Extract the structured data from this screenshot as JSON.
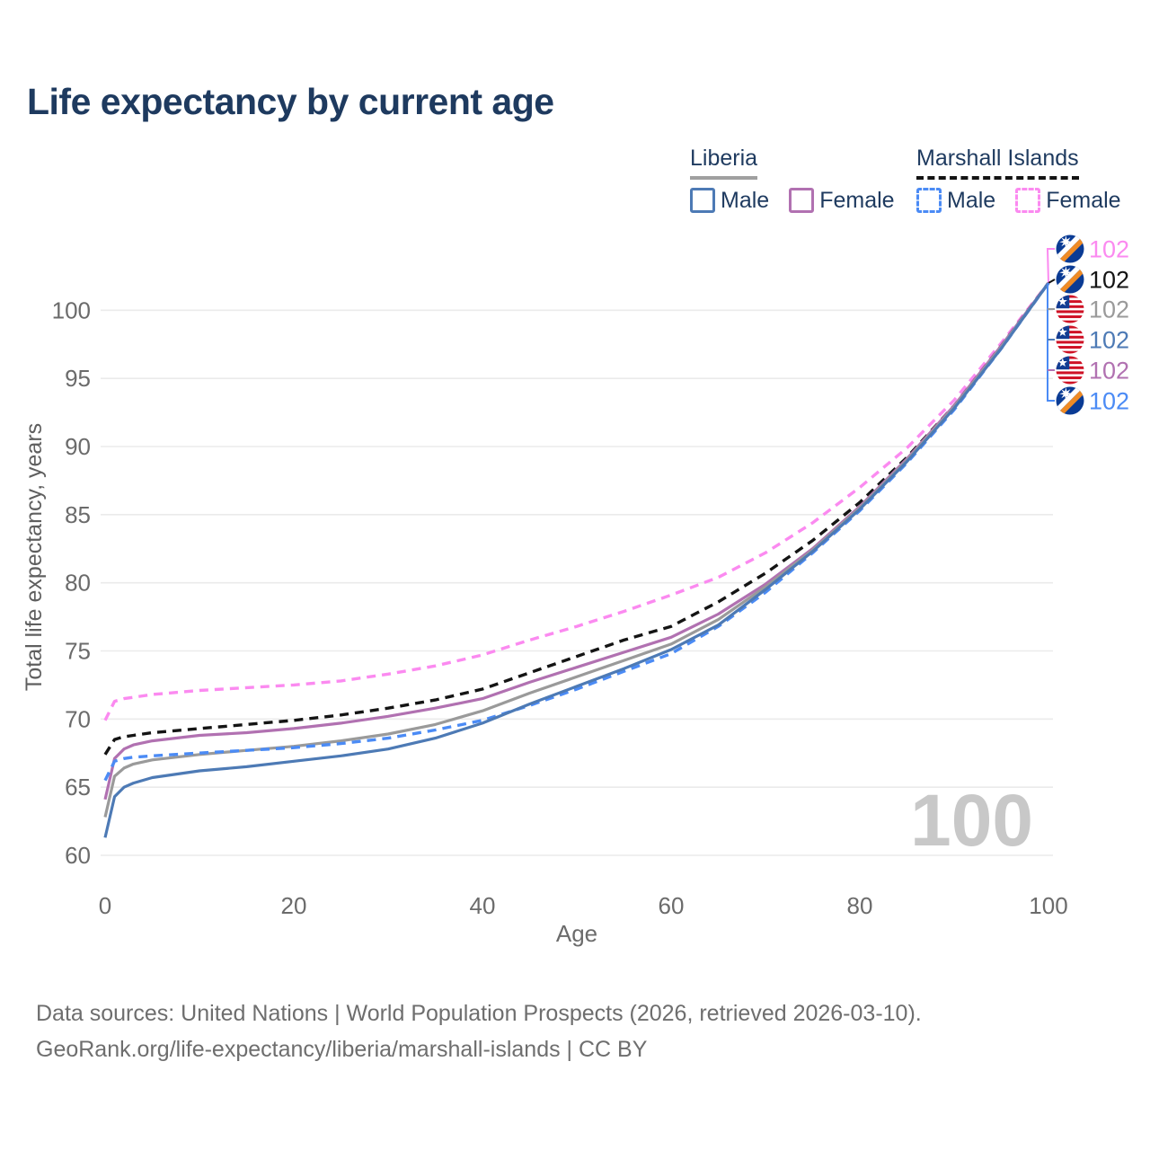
{
  "title": "Life expectancy by current age",
  "watermark": "100",
  "legend": {
    "groups": [
      {
        "label": "Liberia",
        "line_style": "solid",
        "line_color": "#a0a0a0",
        "items": [
          {
            "label": "Male",
            "color": "#4d7ab5"
          },
          {
            "label": "Female",
            "color": "#b171b1"
          }
        ]
      },
      {
        "label": "Marshall Islands",
        "line_style": "dashed",
        "line_color": "#141414",
        "items": [
          {
            "label": "Male",
            "color": "#4b8bf5"
          },
          {
            "label": "Female",
            "color": "#fb8af0"
          }
        ]
      }
    ]
  },
  "footer": {
    "line1": "Data sources: United Nations | World Population Prospects (2026, retrieved 2026-03-10).",
    "line2": "GeoRank.org/life-expectancy/liberia/marshall-islands | CC BY"
  },
  "chart_data": {
    "type": "line",
    "title": "Life expectancy by current age",
    "xlabel": "Age",
    "ylabel": "Total life expectancy, years",
    "xlim": [
      0,
      100
    ],
    "ylim": [
      60,
      102
    ],
    "x_ticks": [
      0,
      20,
      40,
      60,
      80,
      100
    ],
    "y_ticks": [
      60,
      65,
      70,
      75,
      80,
      85,
      90,
      95,
      100
    ],
    "grid": "horizontal-only",
    "legend_position": "top-right",
    "ages": [
      0,
      1,
      2,
      3,
      5,
      10,
      15,
      20,
      25,
      30,
      35,
      40,
      45,
      50,
      55,
      60,
      65,
      70,
      75,
      80,
      85,
      90,
      95,
      100
    ],
    "series": [
      {
        "id": "marshall-islands-female",
        "name": "Marshall Islands Female",
        "country": "Marshall Islands",
        "sex": "Female",
        "color": "#fb8af0",
        "dash": true,
        "values": [
          69.9,
          71.3,
          71.5,
          71.6,
          71.8,
          72.1,
          72.3,
          72.5,
          72.8,
          73.3,
          73.9,
          74.7,
          75.8,
          76.8,
          77.9,
          79.1,
          80.4,
          82.2,
          84.4,
          87.0,
          89.9,
          93.4,
          97.6,
          102
        ]
      },
      {
        "id": "marshall-islands-total",
        "name": "Marshall Islands",
        "country": "Marshall Islands",
        "sex": "Both",
        "color": "#141414",
        "dash": true,
        "values": [
          67.4,
          68.5,
          68.7,
          68.8,
          69.0,
          69.3,
          69.6,
          69.9,
          70.3,
          70.8,
          71.4,
          72.2,
          73.4,
          74.6,
          75.8,
          76.8,
          78.6,
          80.7,
          83.1,
          85.9,
          89.2,
          93.0,
          97.4,
          102
        ]
      },
      {
        "id": "liberia-female",
        "name": "Liberia Female",
        "country": "Liberia",
        "sex": "Female",
        "color": "#b171b1",
        "dash": false,
        "values": [
          64.1,
          67.1,
          67.8,
          68.1,
          68.4,
          68.8,
          69.0,
          69.3,
          69.7,
          70.2,
          70.8,
          71.5,
          72.7,
          73.8,
          74.9,
          76.0,
          77.7,
          79.9,
          82.5,
          85.6,
          89.1,
          93.0,
          97.4,
          102
        ]
      },
      {
        "id": "liberia-total",
        "name": "Liberia",
        "country": "Liberia",
        "sex": "Both",
        "color": "#9a9a9a",
        "dash": false,
        "values": [
          62.8,
          65.8,
          66.4,
          66.7,
          67.0,
          67.4,
          67.7,
          68.0,
          68.4,
          68.9,
          69.6,
          70.6,
          71.9,
          73.1,
          74.3,
          75.5,
          77.3,
          79.7,
          82.4,
          85.5,
          89.0,
          92.9,
          97.3,
          102
        ]
      },
      {
        "id": "marshall-islands-male",
        "name": "Marshall Islands Male",
        "country": "Marshall Islands",
        "sex": "Male",
        "color": "#4b8bf5",
        "dash": true,
        "values": [
          65.5,
          66.9,
          67.1,
          67.2,
          67.3,
          67.5,
          67.7,
          67.9,
          68.2,
          68.6,
          69.2,
          69.9,
          71.0,
          72.2,
          73.5,
          74.8,
          76.8,
          79.3,
          82.2,
          85.3,
          88.8,
          92.7,
          97.2,
          102
        ]
      },
      {
        "id": "liberia-male",
        "name": "Liberia Male",
        "country": "Liberia",
        "sex": "Male",
        "color": "#4d7ab5",
        "dash": false,
        "values": [
          61.3,
          64.3,
          65.0,
          65.3,
          65.7,
          66.2,
          66.5,
          66.9,
          67.3,
          67.8,
          68.6,
          69.7,
          71.1,
          72.4,
          73.7,
          75.1,
          76.9,
          79.5,
          82.3,
          85.4,
          88.9,
          92.8,
          97.2,
          102
        ]
      }
    ],
    "end_labels": [
      {
        "text": "102",
        "flag": "marshall-islands",
        "color": "#fb8af0",
        "series": "Marshall Islands Female"
      },
      {
        "text": "102",
        "flag": "marshall-islands",
        "color": "#141414",
        "series": "Marshall Islands"
      },
      {
        "text": "102",
        "flag": "liberia",
        "color": "#9a9a9a",
        "series": "Liberia"
      },
      {
        "text": "102",
        "flag": "liberia",
        "color": "#4d7ab5",
        "series": "Liberia Male"
      },
      {
        "text": "102",
        "flag": "liberia",
        "color": "#b171b1",
        "series": "Liberia Female"
      },
      {
        "text": "102",
        "flag": "marshall-islands",
        "color": "#4b8bf5",
        "series": "Marshall Islands Male"
      }
    ]
  }
}
